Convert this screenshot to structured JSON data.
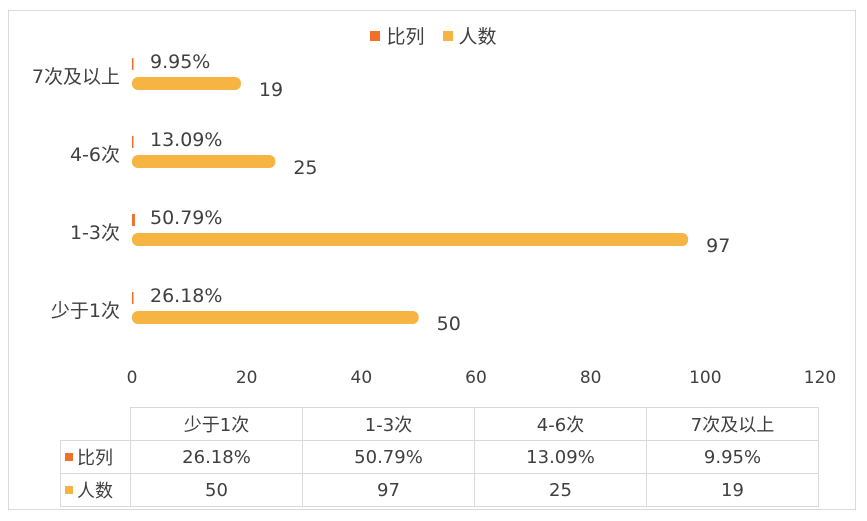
{
  "chart_data": {
    "type": "bar",
    "orientation": "horizontal",
    "categories": [
      "少于1次",
      "1-3次",
      "4-6次",
      "7次及以上"
    ],
    "series": [
      {
        "name": "比列",
        "values": [
          26.18,
          50.79,
          13.09,
          9.95
        ],
        "labels": [
          "26.18%",
          "50.79%",
          "13.09%",
          "9.95%"
        ],
        "color": "#f0702a"
      },
      {
        "name": "人数",
        "values": [
          50,
          97,
          25,
          19
        ],
        "labels": [
          "50",
          "97",
          "25",
          "19"
        ],
        "color": "#f6b442"
      }
    ],
    "xlim": [
      0,
      120
    ],
    "xticks": [
      "0",
      "20",
      "40",
      "60",
      "80",
      "100",
      "120"
    ],
    "legend_position": "top",
    "grid": false,
    "data_table": true
  }
}
